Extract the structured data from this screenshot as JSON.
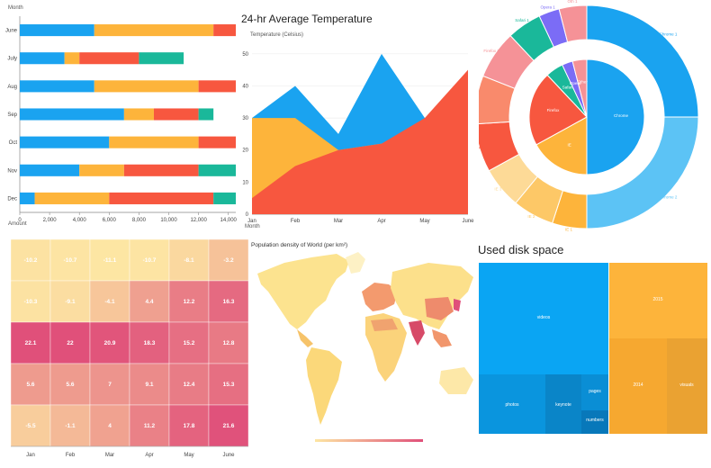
{
  "charts": {
    "stacked_bar": {
      "type": "bar",
      "orientation": "horizontal",
      "stacked": true,
      "ylabel": "Month",
      "xlabel": "Amount",
      "categories": [
        "June",
        "July",
        "Aug",
        "Sep",
        "Oct",
        "Nov",
        "Dec"
      ],
      "xlim": [
        0,
        14500
      ],
      "xticks": [
        0,
        2000,
        4000,
        6000,
        8000,
        10000,
        12000,
        14000
      ],
      "xtick_labels": [
        "0",
        "2,000",
        "4,000",
        "6,000",
        "8,000",
        "10,000",
        "12,000",
        "14,000"
      ],
      "series": [
        {
          "color": "#1AA3F0",
          "values": [
            5000,
            3000,
            5000,
            7000,
            6000,
            4000,
            1000
          ]
        },
        {
          "color": "#FDB43B",
          "values": [
            8000,
            1000,
            7000,
            2000,
            6000,
            3000,
            5000
          ]
        },
        {
          "color": "#F7573F",
          "values": [
            1500,
            4000,
            2500,
            3000,
            2500,
            5000,
            7000
          ]
        },
        {
          "color": "#1AB89A",
          "values": [
            0,
            3000,
            0,
            1000,
            0,
            2500,
            1500
          ]
        }
      ]
    },
    "area": {
      "type": "area",
      "title": "24-hr Average Temperature",
      "ylabel": "Temperature (Celsius)",
      "xlabel": "Month",
      "categories": [
        "Jan",
        "Feb",
        "Mar",
        "Apr",
        "May",
        "June"
      ],
      "ylim": [
        0,
        55
      ],
      "yticks": [
        0,
        10,
        20,
        30,
        40,
        50,
        60
      ],
      "series": [
        {
          "color": "#1AA3F0",
          "values": [
            30,
            40,
            25,
            50,
            30,
            40
          ]
        },
        {
          "color": "#FDB43B",
          "values": [
            30,
            30,
            20,
            22,
            22,
            45
          ]
        },
        {
          "color": "#F7573F",
          "values": [
            5,
            15,
            20,
            22,
            30,
            45
          ]
        }
      ]
    },
    "donut": {
      "type": "pie",
      "inner_labels": [
        "Chrome",
        "IE",
        "Firefox",
        "Safari",
        "Opera",
        "Other"
      ],
      "outer_labels": [
        "Chrome 1",
        "Chrome 2",
        "IE 1",
        "IE 2",
        "IE 3",
        "Firefox 1",
        "Firefox 2",
        "Firefox 3",
        "Safari 1",
        "Opera 1",
        "Oth 1"
      ],
      "inner": [
        {
          "value": 50,
          "color": "#1AA3F0"
        },
        {
          "value": 17,
          "color": "#FDB43B"
        },
        {
          "value": 21,
          "color": "#F7573F"
        },
        {
          "value": 5,
          "color": "#1AB89A"
        },
        {
          "value": 3,
          "color": "#7B6CF6"
        },
        {
          "value": 4,
          "color": "#F59297"
        }
      ],
      "outer": [
        {
          "value": 25,
          "color": "#1AA3F0"
        },
        {
          "value": 25,
          "color": "#5CC3F5"
        },
        {
          "value": 5,
          "color": "#FDB43B"
        },
        {
          "value": 6,
          "color": "#FDC867"
        },
        {
          "value": 6,
          "color": "#FDDA97"
        },
        {
          "value": 7,
          "color": "#F7573F"
        },
        {
          "value": 7,
          "color": "#F98A6C"
        },
        {
          "value": 7,
          "color": "#F59297"
        },
        {
          "value": 5,
          "color": "#1AB89A"
        },
        {
          "value": 3,
          "color": "#7B6CF6"
        },
        {
          "value": 4,
          "color": "#F59297"
        }
      ]
    },
    "heatmap": {
      "type": "heatmap",
      "xcats": [
        "Jan",
        "Feb",
        "Mar",
        "Apr",
        "May",
        "June"
      ],
      "values": [
        [
          -10.2,
          -10.7,
          -11.1,
          -10.7,
          -8.1,
          -3.2
        ],
        [
          -10.3,
          -9.1,
          -4.1,
          4.4,
          12.2,
          16.3
        ],
        [
          22.1,
          22,
          20.9,
          18.3,
          15.2,
          12.8
        ],
        [
          5.6,
          5.6,
          7,
          9.1,
          12.4,
          15.3
        ],
        [
          -5.5,
          -1.1,
          4,
          11.2,
          17.8,
          21.6
        ]
      ],
      "value_labels": [
        [
          "-10.2",
          "-10.7",
          "-11.1",
          "-10.7",
          "-8.1",
          "-3.2"
        ],
        [
          "-10.3",
          "-9.1",
          "-4.1",
          "4.4",
          "12.2",
          "16.3"
        ],
        [
          "22.1",
          "22",
          "20.9",
          "18.3",
          "15.2",
          "12.8"
        ],
        [
          "5.6",
          "5.6",
          "7",
          "9.1",
          "12.4",
          "15.3"
        ],
        [
          "-5.5",
          "-1.1",
          "4",
          "11.2",
          "17.8",
          "21.6"
        ]
      ]
    },
    "map": {
      "type": "map",
      "title": "Population density of World (per km²)",
      "gradient": [
        "#FDE6A3",
        "#E0507A"
      ]
    },
    "treemap": {
      "type": "treemap",
      "title": "Used disk space",
      "labels": [
        "videos",
        "2015",
        "photos",
        "keynote",
        "pages",
        "numbers",
        "2014",
        "visuals"
      ]
    }
  }
}
